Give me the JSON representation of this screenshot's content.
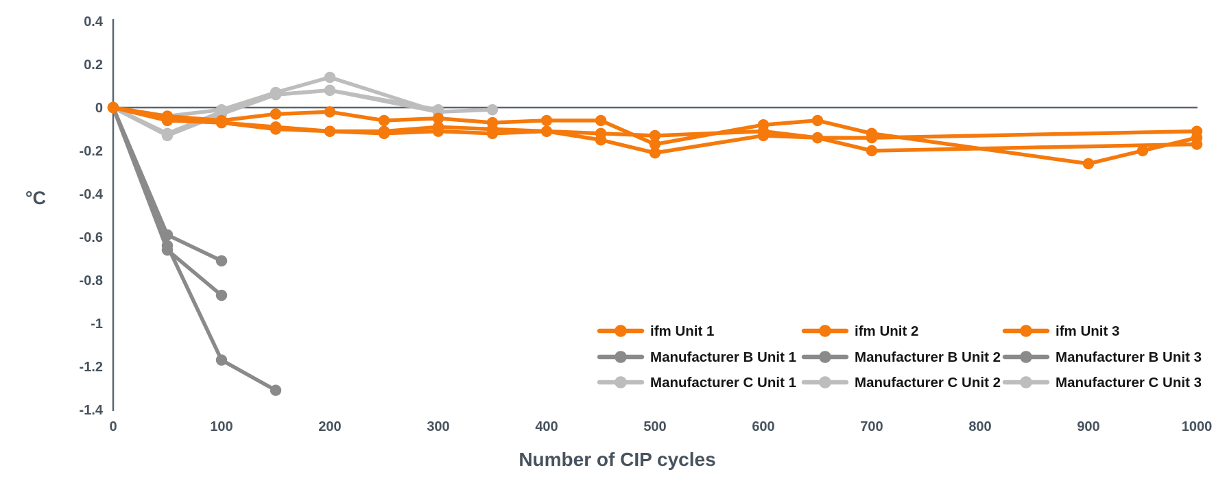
{
  "chart": {
    "y_axis_title": "°C",
    "x_axis_title": "Number of CIP cycles",
    "colors": {
      "ifm_orange": "#F5790B",
      "manufacturer_b_gray": "#8A8A8A",
      "manufacturer_c_gray": "#BDBDBD",
      "axis_line": "#5A6570",
      "tick_text": "#47535E",
      "legend_text": "#161616"
    }
  },
  "chart_data": {
    "type": "line",
    "title": "",
    "xlabel": "Number of CIP cycles",
    "ylabel": "°C",
    "xlim": [
      0,
      1023
    ],
    "ylim": [
      -1.4,
      0.4
    ],
    "x_ticks": [
      0,
      100,
      200,
      300,
      400,
      500,
      600,
      700,
      800,
      900,
      1000
    ],
    "y_tick_labels": [
      "0.4",
      "0.2",
      "0",
      "-0.2",
      "-0.4",
      "-0.6",
      "-0.8",
      "-1",
      "-1.2",
      "-1.4"
    ],
    "y_tick_values": [
      0.4,
      0.2,
      0,
      -0.2,
      -0.4,
      -0.6,
      -0.8,
      -1,
      -1.2,
      -1.4
    ],
    "grid": "zero-baseline-only",
    "legend_position": "inside lower-right, 3 columns x 3 rows",
    "series": [
      {
        "name": "ifm Unit 1",
        "color_key": "ifm_orange",
        "points": [
          [
            0,
            0
          ],
          [
            50,
            -0.04
          ],
          [
            100,
            -0.06
          ],
          [
            150,
            -0.03
          ],
          [
            200,
            -0.02
          ],
          [
            250,
            -0.06
          ],
          [
            300,
            -0.05
          ],
          [
            350,
            -0.07
          ],
          [
            400,
            -0.06
          ],
          [
            450,
            -0.06
          ],
          [
            500,
            -0.17
          ],
          [
            600,
            -0.08
          ],
          [
            650,
            -0.06
          ],
          [
            700,
            -0.12
          ],
          [
            900,
            -0.26
          ],
          [
            950,
            -0.2
          ],
          [
            1000,
            -0.14
          ]
        ]
      },
      {
        "name": "ifm Unit 2",
        "color_key": "ifm_orange",
        "points": [
          [
            0,
            0
          ],
          [
            50,
            -0.05
          ],
          [
            100,
            -0.07
          ],
          [
            150,
            -0.09
          ],
          [
            200,
            -0.11
          ],
          [
            250,
            -0.11
          ],
          [
            300,
            -0.09
          ],
          [
            350,
            -0.1
          ],
          [
            400,
            -0.11
          ],
          [
            450,
            -0.15
          ],
          [
            500,
            -0.21
          ],
          [
            600,
            -0.13
          ],
          [
            650,
            -0.14
          ],
          [
            700,
            -0.2
          ],
          [
            1000,
            -0.17
          ]
        ]
      },
      {
        "name": "ifm Unit 3",
        "color_key": "ifm_orange",
        "points": [
          [
            0,
            0
          ],
          [
            50,
            -0.06
          ],
          [
            100,
            -0.07
          ],
          [
            150,
            -0.1
          ],
          [
            200,
            -0.11
          ],
          [
            250,
            -0.12
          ],
          [
            300,
            -0.11
          ],
          [
            350,
            -0.12
          ],
          [
            400,
            -0.11
          ],
          [
            450,
            -0.12
          ],
          [
            500,
            -0.13
          ],
          [
            600,
            -0.11
          ],
          [
            650,
            -0.14
          ],
          [
            700,
            -0.14
          ],
          [
            1000,
            -0.11
          ]
        ]
      },
      {
        "name": "Manufacturer B Unit 1",
        "color_key": "manufacturer_b_gray",
        "points": [
          [
            0,
            0
          ],
          [
            50,
            -0.59
          ],
          [
            100,
            -0.71
          ]
        ]
      },
      {
        "name": "Manufacturer B Unit 2",
        "color_key": "manufacturer_b_gray",
        "points": [
          [
            0,
            0
          ],
          [
            50,
            -0.66
          ],
          [
            100,
            -0.87
          ]
        ]
      },
      {
        "name": "Manufacturer B Unit 3",
        "color_key": "manufacturer_b_gray",
        "points": [
          [
            0,
            0
          ],
          [
            50,
            -0.64
          ],
          [
            100,
            -1.17
          ],
          [
            150,
            -1.31
          ]
        ]
      },
      {
        "name": "Manufacturer C Unit 1",
        "color_key": "manufacturer_c_gray",
        "points": [
          [
            0,
            0
          ],
          [
            50,
            -0.04
          ],
          [
            100,
            -0.01
          ],
          [
            150,
            0.07
          ],
          [
            200,
            0.14
          ],
          [
            300,
            -0.02
          ],
          [
            350,
            -0.01
          ]
        ]
      },
      {
        "name": "Manufacturer C Unit 2",
        "color_key": "manufacturer_c_gray",
        "points": [
          [
            0,
            0
          ],
          [
            50,
            -0.12
          ],
          [
            100,
            -0.02
          ],
          [
            150,
            0.06
          ],
          [
            200,
            0.08
          ],
          [
            300,
            -0.01
          ]
        ]
      },
      {
        "name": "Manufacturer C Unit 3",
        "color_key": "manufacturer_c_gray",
        "points": [
          [
            0,
            0
          ],
          [
            50,
            -0.13
          ],
          [
            100,
            -0.03
          ],
          [
            150,
            0.06
          ],
          [
            200,
            0.08
          ],
          [
            300,
            -0.02
          ]
        ]
      }
    ]
  }
}
